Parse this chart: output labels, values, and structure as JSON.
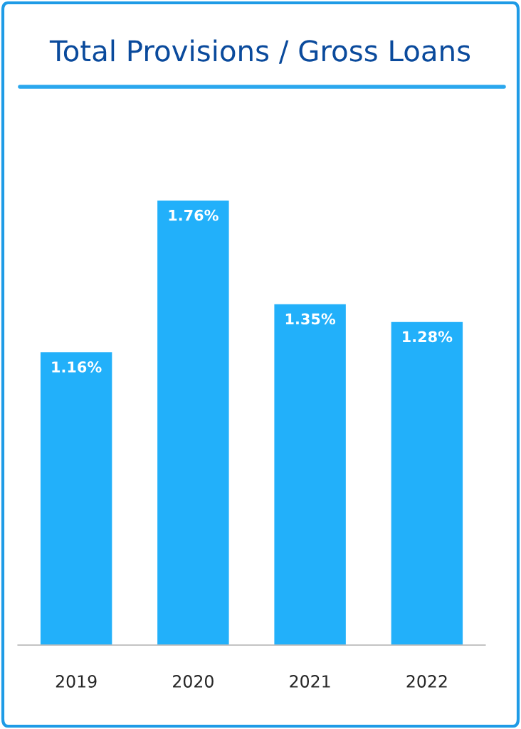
{
  "chart_data": {
    "type": "bar",
    "title": "Total Provisions / Gross Loans",
    "categories": [
      "2019",
      "2020",
      "2021",
      "2022"
    ],
    "values": [
      1.16,
      1.76,
      1.35,
      1.28
    ],
    "value_labels": [
      "1.16%",
      "1.76%",
      "1.35%",
      "1.28%"
    ],
    "color": "#22b0fa",
    "tick_labels": "x",
    "grid": false
  }
}
